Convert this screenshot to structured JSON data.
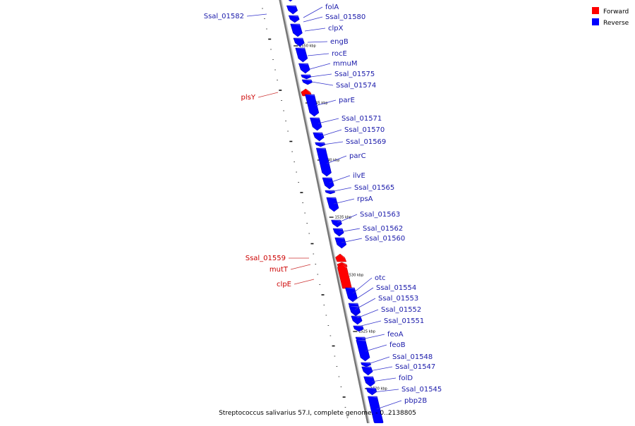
{
  "legend": [
    {
      "name": "Forward",
      "color": "#ff0000"
    },
    {
      "name": "Reverse",
      "color": "#0000ff"
    }
  ],
  "caption": "Streptococcus salivarius 57.I, complete genome. - 0..2138805",
  "colors": {
    "forward": "#ff0000",
    "reverse": "#0000ff",
    "backbone": "#777777",
    "label_line_reverse": "#3333cc",
    "label_line_forward": "#cc3333"
  },
  "genes": [
    {
      "name": "folA",
      "strand": "reverse"
    },
    {
      "name": "Ssal_01580",
      "strand": "reverse"
    },
    {
      "name": "Ssal_01582",
      "strand": "reverse"
    },
    {
      "name": "clpX",
      "strand": "reverse"
    },
    {
      "name": "engB",
      "strand": "reverse"
    },
    {
      "name": "rocE",
      "strand": "reverse"
    },
    {
      "name": "mmuM",
      "strand": "reverse"
    },
    {
      "name": "Ssal_01575",
      "strand": "reverse"
    },
    {
      "name": "Ssal_01574",
      "strand": "reverse"
    },
    {
      "name": "plsY",
      "strand": "forward"
    },
    {
      "name": "parE",
      "strand": "reverse"
    },
    {
      "name": "Ssal_01571",
      "strand": "reverse"
    },
    {
      "name": "Ssal_01570",
      "strand": "reverse"
    },
    {
      "name": "Ssal_01569",
      "strand": "reverse"
    },
    {
      "name": "parC",
      "strand": "reverse"
    },
    {
      "name": "ilvE",
      "strand": "reverse"
    },
    {
      "name": "Ssal_01565",
      "strand": "reverse"
    },
    {
      "name": "rpsA",
      "strand": "reverse"
    },
    {
      "name": "Ssal_01563",
      "strand": "reverse"
    },
    {
      "name": "Ssal_01562",
      "strand": "reverse"
    },
    {
      "name": "Ssal_01560",
      "strand": "reverse"
    },
    {
      "name": "Ssal_01559",
      "strand": "forward"
    },
    {
      "name": "mutT",
      "strand": "forward"
    },
    {
      "name": "clpE",
      "strand": "forward"
    },
    {
      "name": "otc",
      "strand": "reverse"
    },
    {
      "name": "Ssal_01554",
      "strand": "reverse"
    },
    {
      "name": "Ssal_01553",
      "strand": "reverse"
    },
    {
      "name": "Ssal_01552",
      "strand": "reverse"
    },
    {
      "name": "Ssal_01551",
      "strand": "reverse"
    },
    {
      "name": "feoA",
      "strand": "reverse"
    },
    {
      "name": "feoB",
      "strand": "reverse"
    },
    {
      "name": "Ssal_01548",
      "strand": "reverse"
    },
    {
      "name": "Ssal_01547",
      "strand": "reverse"
    },
    {
      "name": "folD",
      "strand": "reverse"
    },
    {
      "name": "Ssal_01545",
      "strand": "reverse"
    },
    {
      "name": "pbp2B",
      "strand": "reverse"
    }
  ],
  "scale_ticks": [
    "1550 kbp",
    "1545 kbp",
    "1540 kbp",
    "1535 kbp",
    "1530 kbp",
    "1525 kbp",
    "1520 kbp"
  ]
}
